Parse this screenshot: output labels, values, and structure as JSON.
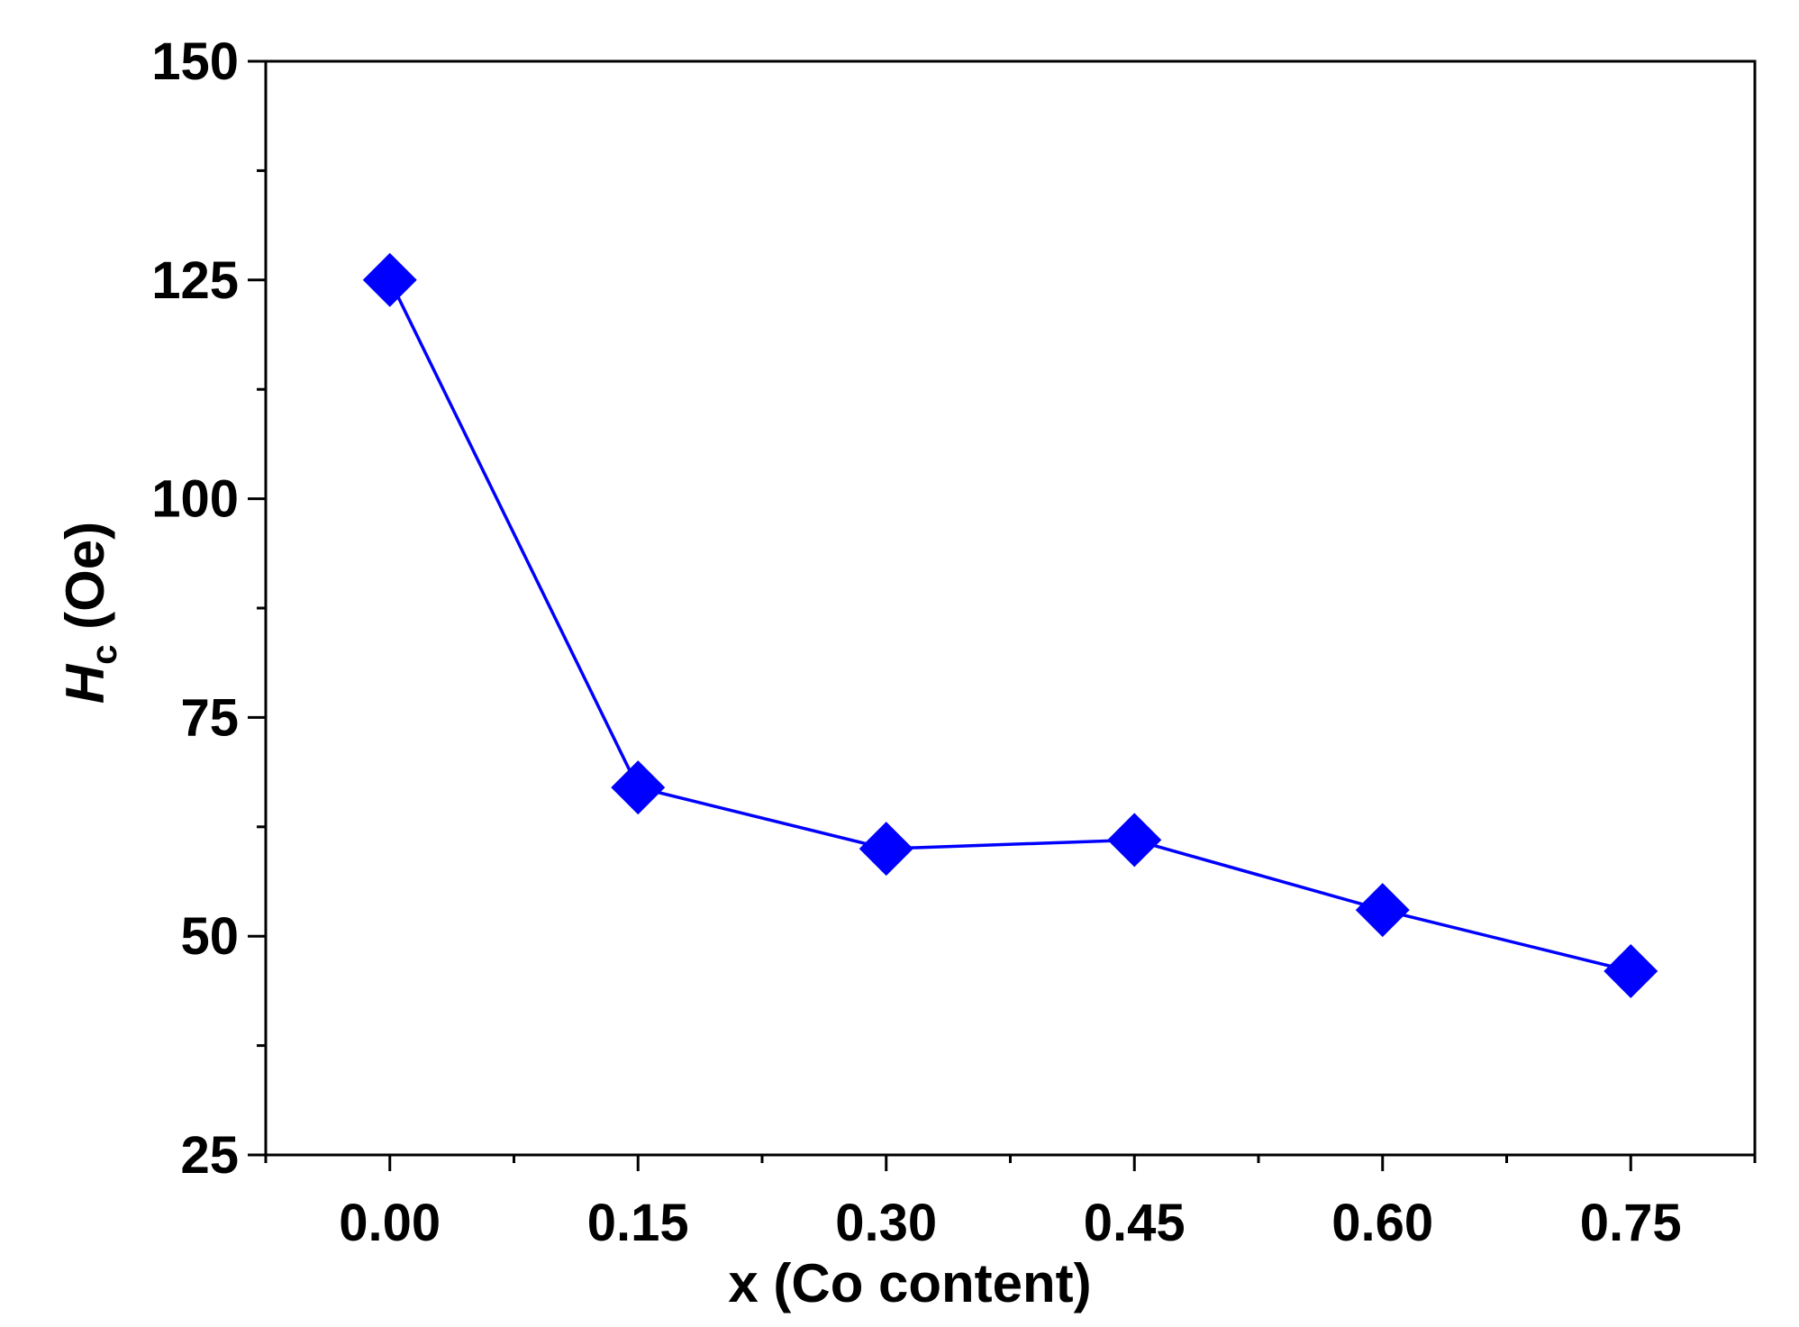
{
  "chart_data": {
    "type": "line",
    "x": [
      0.0,
      0.15,
      0.3,
      0.45,
      0.6,
      0.75
    ],
    "x_tick_labels": [
      "0.00",
      "0.15",
      "0.30",
      "0.45",
      "0.60",
      "0.75"
    ],
    "y_ticks": [
      25,
      50,
      75,
      100,
      125,
      150
    ],
    "y_tick_labels": [
      "25",
      "50",
      "75",
      "100",
      "125",
      "150"
    ],
    "series": [
      {
        "values": [
          125,
          67,
          60,
          61,
          53,
          46
        ]
      }
    ],
    "xlabel": "x (Co content)",
    "ylabel_main": "H",
    "ylabel_sub": "c",
    "ylabel_unit": " (Oe)",
    "xlim": [
      -0.075,
      0.825
    ],
    "ylim": [
      25,
      150
    ],
    "grid": false,
    "marker": "diamond",
    "colors": {
      "series": "#0000ff",
      "marker": "#0000ff",
      "axis": "#000000"
    }
  }
}
